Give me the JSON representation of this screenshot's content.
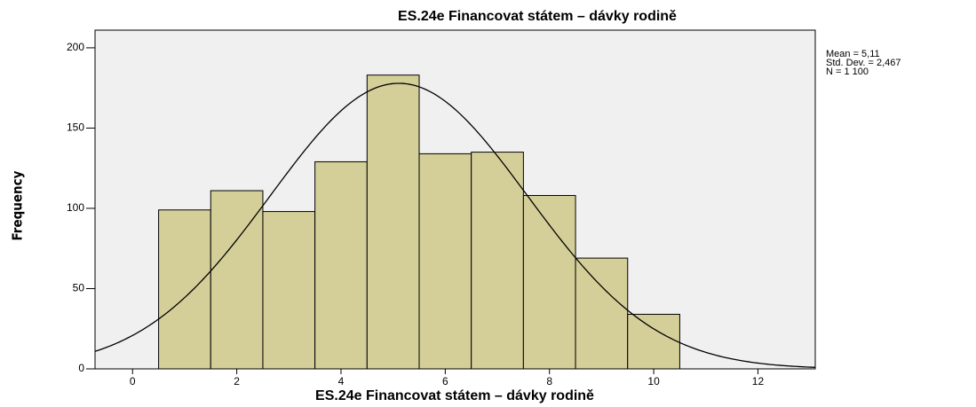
{
  "chart_data": {
    "type": "histogram",
    "title": "ES.24e Financovat státem – dávky rodině",
    "xlabel": "ES.24e Financovat státem – dávky rodině",
    "ylabel": "Frequency",
    "bins": [
      0.5,
      1.5,
      2.5,
      3.5,
      4.5,
      5.5,
      6.5,
      7.5,
      8.5,
      9.5,
      10.5
    ],
    "counts": [
      99,
      111,
      98,
      129,
      183,
      134,
      135,
      108,
      69,
      34
    ],
    "color": "#d4cf99",
    "xlim": [
      -0.72,
      13.1
    ],
    "xticks": [
      0,
      2,
      4,
      6,
      8,
      10,
      12
    ],
    "ylim": [
      0,
      211
    ],
    "yticks": [
      0,
      50,
      100,
      150,
      200
    ],
    "stats": {
      "mean": {
        "value": 5.11,
        "label": "Mean = 5,11"
      },
      "sd": {
        "value": 2.467,
        "label": "Std. Dev. = 2,467"
      },
      "n": {
        "value": 1100,
        "label": "N = 1 100"
      }
    },
    "normal_curve": true
  }
}
